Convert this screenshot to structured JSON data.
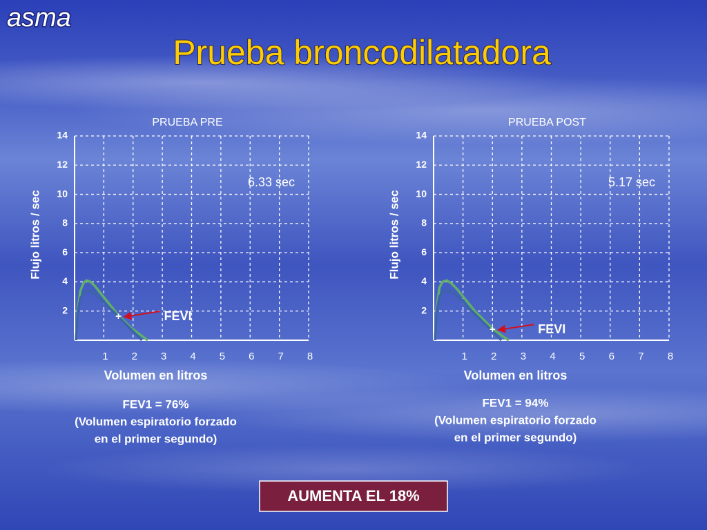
{
  "slide": {
    "section": "asma",
    "title": "Prueba broncodilatadora",
    "banner": "AUMENTA EL 18%"
  },
  "chart_data": [
    {
      "type": "line",
      "title": "PRUEBA PRE",
      "y_label": "Flujo litros / sec",
      "x_label": "Volumen en litros",
      "xlim": [
        0,
        8
      ],
      "xticks": [
        1,
        2,
        3,
        4,
        5,
        6,
        7,
        8
      ],
      "ylim": [
        0,
        14
      ],
      "yticks": [
        2,
        4,
        6,
        8,
        10,
        12,
        14
      ],
      "grid": true,
      "series": [
        {
          "color": "#5fae6a",
          "x": [
            0.05,
            0.1,
            0.2,
            0.3,
            0.4,
            0.55,
            0.7,
            0.9,
            1.1,
            1.3,
            1.5,
            1.7,
            1.9,
            2.1,
            2.3,
            2.5
          ],
          "values": [
            0,
            2,
            3.4,
            3.9,
            4.1,
            4.0,
            3.7,
            3.2,
            2.7,
            2.2,
            1.7,
            1.3,
            0.9,
            0.6,
            0.3,
            0
          ]
        },
        {
          "color": "#3d63a8",
          "x": [
            0.05,
            0.1,
            0.2,
            0.35,
            0.5,
            0.7,
            0.9,
            1.1,
            1.3,
            1.5,
            1.7,
            1.9,
            2.1,
            2.3
          ],
          "values": [
            0,
            1.8,
            2.9,
            3.3,
            3.4,
            3.2,
            2.8,
            2.4,
            2.0,
            1.6,
            1.2,
            0.8,
            0.4,
            0
          ]
        }
      ],
      "marker": {
        "x": 1.5,
        "y": 1.6,
        "label": "+"
      },
      "duration": "6.33 sec",
      "arrow_label": "FEVI",
      "caption": [
        "FEV1 = 76%",
        "(Volumen espiratorio forzado",
        "en el primer segundo)"
      ]
    },
    {
      "type": "line",
      "title": "PRUEBA POST",
      "y_label": "Flujo litros / sec",
      "x_label": "Volumen en litros",
      "xlim": [
        0,
        8
      ],
      "xticks": [
        1,
        2,
        3,
        4,
        5,
        6,
        7,
        8
      ],
      "ylim": [
        0,
        14
      ],
      "yticks": [
        2,
        4,
        6,
        8,
        10,
        12,
        14
      ],
      "grid": true,
      "series": [
        {
          "color": "#5fae6a",
          "x": [
            0.05,
            0.1,
            0.2,
            0.3,
            0.45,
            0.6,
            0.8,
            1.0,
            1.2,
            1.4,
            1.6,
            1.8,
            2.0,
            2.2,
            2.4,
            2.55
          ],
          "values": [
            0,
            2.2,
            3.6,
            4.0,
            4.1,
            3.9,
            3.5,
            3.0,
            2.5,
            2.0,
            1.6,
            1.2,
            0.8,
            0.5,
            0.2,
            0
          ]
        },
        {
          "color": "#3d63a8",
          "x": [
            0.05,
            0.1,
            0.2,
            0.35,
            0.5,
            0.7,
            0.9,
            1.1,
            1.3,
            1.5,
            1.7,
            1.9,
            2.1,
            2.3
          ],
          "values": [
            0,
            1.9,
            3.0,
            3.4,
            3.4,
            3.2,
            2.8,
            2.4,
            2.0,
            1.6,
            1.2,
            0.8,
            0.4,
            0
          ]
        }
      ],
      "marker": {
        "x": 2.0,
        "y": 0.7,
        "label": "+"
      },
      "duration": "5.17 sec",
      "arrow_label": "FEVI",
      "caption": [
        "FEV1 = 94%",
        "(Volumen espiratorio forzado",
        "en el primer segundo)"
      ]
    }
  ]
}
